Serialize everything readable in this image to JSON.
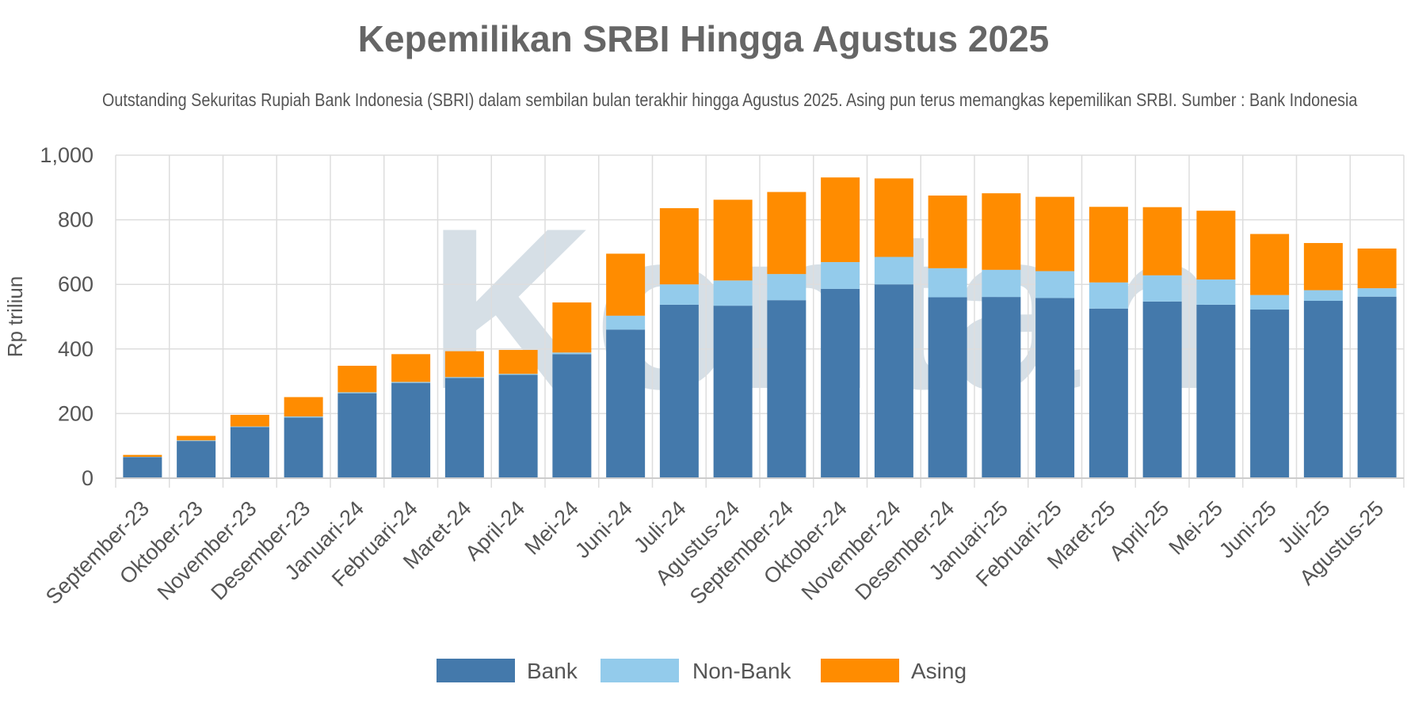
{
  "title": "Kepemilikan SRBI Hingga Agustus 2025",
  "subtitle": "Outstanding Sekuritas Rupiah Bank Indonesia (SBRI) dalam sembilan bulan terakhir hingga Agustus 2025. Asing pun terus memangkas kepemilikan SRBI. Sumber : Bank Indonesia",
  "chart_data": {
    "type": "bar",
    "stacked": true,
    "title": "Kepemilikan SRBI Hingga Agustus 2025",
    "xlabel": "",
    "ylabel": "Rp triliun",
    "ylim": [
      0,
      1000
    ],
    "yticks": [
      0,
      200,
      400,
      600,
      800,
      1000
    ],
    "ytick_labels": [
      "0",
      "200",
      "400",
      "600",
      "800",
      "1,000"
    ],
    "grid": true,
    "legend_position": "bottom",
    "categories": [
      "September-23",
      "Oktober-23",
      "November-23",
      "Desember-23",
      "Januari-24",
      "Februari-24",
      "Maret-24",
      "April-24",
      "Mei-24",
      "Juni-24",
      "Juli-24",
      "Agustus-24",
      "September-24",
      "Oktober-24",
      "November-24",
      "Desember-24",
      "Januari-25",
      "Februari-25",
      "Maret-25",
      "April-25",
      "Mei-25",
      "Juni-25",
      "Juli-25",
      "Agustus-25"
    ],
    "series": [
      {
        "name": "Bank",
        "color": "#4479ab",
        "values": [
          65,
          115,
          158,
          188,
          263,
          295,
          310,
          320,
          384,
          460,
          537,
          534,
          551,
          586,
          600,
          560,
          561,
          558,
          525,
          547,
          537,
          522,
          549,
          562
        ]
      },
      {
        "name": "Non-Bank",
        "color": "#93cbeb",
        "values": [
          1,
          2,
          2,
          3,
          3,
          3,
          3,
          3,
          5,
          43,
          63,
          78,
          81,
          83,
          85,
          90,
          84,
          83,
          81,
          81,
          78,
          45,
          33,
          26
        ]
      },
      {
        "name": "Asing",
        "color": "#ff8c00",
        "values": [
          6,
          14,
          36,
          60,
          82,
          86,
          80,
          74,
          155,
          192,
          236,
          250,
          254,
          262,
          243,
          225,
          237,
          230,
          234,
          211,
          213,
          189,
          146,
          123
        ]
      }
    ]
  },
  "colors": {
    "grid": "#dddddd",
    "axis": "#cccccc",
    "text": "#555555",
    "watermark": "#ccd7e0"
  },
  "watermark": "Kontan"
}
